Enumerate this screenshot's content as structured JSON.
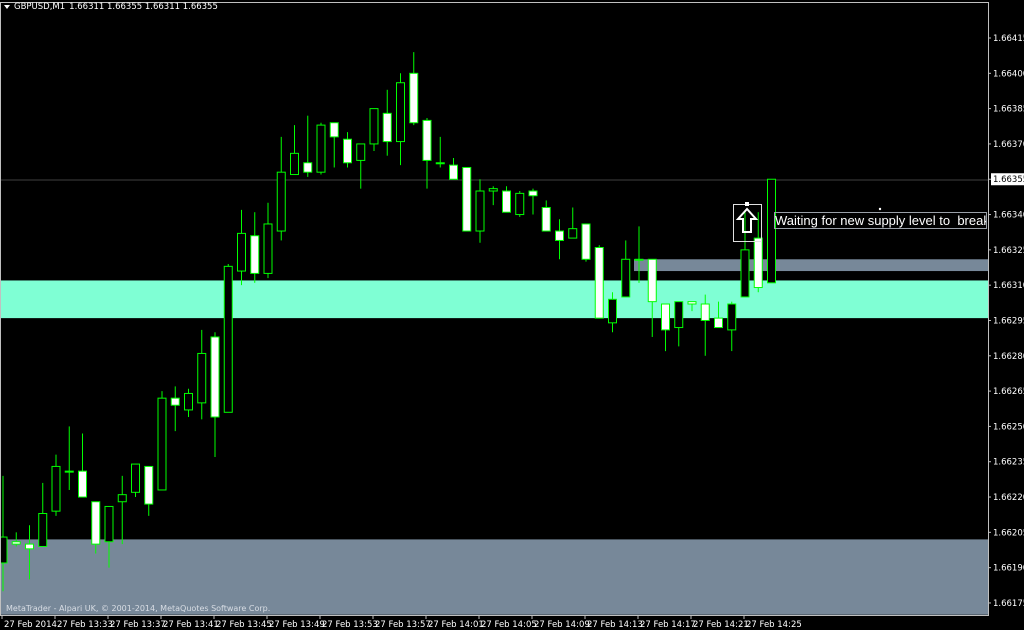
{
  "header": {
    "symbol": "GBPUSD,M1",
    "ohlc": "1.66311 1.66355 1.66311 1.66355"
  },
  "footer": "MetaTrader - Alpari UK, © 2001-2014, MetaQuotes Software Corp.",
  "annotation": {
    "text": "Waiting for new supply level to  break",
    "icon": "up-arrow-icon"
  },
  "colors": {
    "background": "#000000",
    "candle_outline": "#00ff00",
    "bull_body": "#000000",
    "bear_body": "#ffffff",
    "demand_zone": "#7fffd4",
    "supply_zone": "#778899",
    "bid_line": "#404040",
    "axis": "#c0c0c0"
  },
  "chart_data": {
    "type": "candlestick",
    "symbol": "GBPUSD",
    "timeframe": "M1",
    "ylim": [
      1.6617,
      1.66425
    ],
    "current_price": "1.66355",
    "price_ticks": [
      "1.66415",
      "1.66400",
      "1.66385",
      "1.66370",
      "1.66355",
      "1.66340",
      "1.66325",
      "1.66310",
      "1.66295",
      "1.66280",
      "1.66265",
      "1.66250",
      "1.66235",
      "1.66220",
      "1.66205",
      "1.66190",
      "1.66175"
    ],
    "time_ticks": [
      "27 Feb 2014",
      "27 Feb 13:33",
      "27 Feb 13:37",
      "27 Feb 13:41",
      "27 Feb 13:45",
      "27 Feb 13:49",
      "27 Feb 13:53",
      "27 Feb 13:57",
      "27 Feb 14:01",
      "27 Feb 14:05",
      "27 Feb 14:09",
      "27 Feb 14:13",
      "27 Feb 14:17",
      "27 Feb 14:21",
      "27 Feb 14:25"
    ],
    "candle_fields": [
      "time",
      "open",
      "high",
      "low",
      "close"
    ],
    "candles": [
      [
        "13:29",
        1.66192,
        1.66229,
        1.6618,
        1.66203
      ],
      [
        "13:30",
        1.66201,
        1.66205,
        1.66199,
        1.662
      ],
      [
        "13:31",
        1.662,
        1.66208,
        1.66185,
        1.66198
      ],
      [
        "13:32",
        1.66199,
        1.66226,
        1.66199,
        1.66213
      ],
      [
        "13:33",
        1.66214,
        1.66238,
        1.66212,
        1.66233
      ],
      [
        "13:34",
        1.66231,
        1.6625,
        1.66223,
        1.66231
      ],
      [
        "13:35",
        1.66231,
        1.66247,
        1.6622,
        1.6622
      ],
      [
        "13:36",
        1.66218,
        1.66218,
        1.66196,
        1.662
      ],
      [
        "13:37",
        1.66201,
        1.66216,
        1.6619,
        1.66216
      ],
      [
        "13:38",
        1.66218,
        1.66229,
        1.662,
        1.66221
      ],
      [
        "13:39",
        1.66222,
        1.66234,
        1.6622,
        1.66234
      ],
      [
        "13:40",
        1.66233,
        1.66233,
        1.66212,
        1.66217
      ],
      [
        "13:41",
        1.66223,
        1.66265,
        1.66223,
        1.66262
      ],
      [
        "13:42",
        1.66262,
        1.66267,
        1.66248,
        1.66259
      ],
      [
        "13:43",
        1.66257,
        1.66266,
        1.66254,
        1.66264
      ],
      [
        "13:44",
        1.6626,
        1.66291,
        1.66253,
        1.66281
      ],
      [
        "13:45",
        1.66288,
        1.6629,
        1.66237,
        1.66254
      ],
      [
        "13:46",
        1.66256,
        1.66319,
        1.66256,
        1.66318
      ],
      [
        "13:47",
        1.66316,
        1.66342,
        1.6631,
        1.66332
      ],
      [
        "13:48",
        1.66331,
        1.66341,
        1.66311,
        1.66315
      ],
      [
        "13:49",
        1.66315,
        1.66345,
        1.66313,
        1.66336
      ],
      [
        "13:50",
        1.66333,
        1.66373,
        1.66329,
        1.66358
      ],
      [
        "13:51",
        1.66357,
        1.66378,
        1.66357,
        1.66366
      ],
      [
        "13:52",
        1.66362,
        1.66382,
        1.66356,
        1.66358
      ],
      [
        "13:53",
        1.66358,
        1.66379,
        1.66357,
        1.66378
      ],
      [
        "13:54",
        1.66379,
        1.66379,
        1.6636,
        1.66373
      ],
      [
        "13:55",
        1.66372,
        1.66375,
        1.6636,
        1.66362
      ],
      [
        "13:56",
        1.66363,
        1.6637,
        1.66351,
        1.6637
      ],
      [
        "13:57",
        1.6637,
        1.66385,
        1.66367,
        1.66385
      ],
      [
        "13:58",
        1.66383,
        1.66393,
        1.66365,
        1.66371
      ],
      [
        "13:59",
        1.66371,
        1.664,
        1.66361,
        1.66396
      ],
      [
        "14:00",
        1.664,
        1.66409,
        1.66378,
        1.66379
      ],
      [
        "14:01",
        1.6638,
        1.66381,
        1.66351,
        1.66363
      ],
      [
        "14:02",
        1.66362,
        1.66373,
        1.6636,
        1.66362
      ],
      [
        "14:03",
        1.66361,
        1.66364,
        1.66355,
        1.66355
      ],
      [
        "14:04",
        1.6636,
        1.6636,
        1.66333,
        1.66333
      ],
      [
        "14:05",
        1.66333,
        1.66355,
        1.66328,
        1.6635
      ],
      [
        "14:06",
        1.6635,
        1.66352,
        1.66344,
        1.66351
      ],
      [
        "14:07",
        1.6635,
        1.66352,
        1.66341,
        1.66341
      ],
      [
        "14:08",
        1.6634,
        1.6635,
        1.66339,
        1.66349
      ],
      [
        "14:09",
        1.6635,
        1.66351,
        1.6634,
        1.66348
      ],
      [
        "14:10",
        1.66343,
        1.66346,
        1.66333,
        1.66333
      ],
      [
        "14:11",
        1.66333,
        1.66338,
        1.66321,
        1.66329
      ],
      [
        "14:12",
        1.6633,
        1.66343,
        1.6633,
        1.66334
      ],
      [
        "14:13",
        1.66336,
        1.66336,
        1.6632,
        1.66321
      ],
      [
        "14:14",
        1.66326,
        1.66327,
        1.66296,
        1.66296
      ],
      [
        "14:15",
        1.66294,
        1.66307,
        1.6629,
        1.66304
      ],
      [
        "14:16",
        1.66305,
        1.66329,
        1.66305,
        1.66321
      ],
      [
        "14:17",
        1.66321,
        1.66335,
        1.66311,
        1.66321
      ],
      [
        "14:18",
        1.66321,
        1.66321,
        1.66288,
        1.66303
      ],
      [
        "14:19",
        1.66302,
        1.66302,
        1.66282,
        1.66291
      ],
      [
        "14:20",
        1.66292,
        1.66303,
        1.66284,
        1.66303
      ],
      [
        "14:21",
        1.66303,
        1.66303,
        1.66299,
        1.66302
      ],
      [
        "14:22",
        1.66302,
        1.66306,
        1.6628,
        1.66295
      ],
      [
        "14:23",
        1.66296,
        1.66303,
        1.66292,
        1.66292
      ],
      [
        "14:24",
        1.66291,
        1.66303,
        1.66282,
        1.66302
      ],
      [
        "14:25",
        1.66305,
        1.66341,
        1.66305,
        1.66325
      ],
      [
        "14:26",
        1.6633,
        1.66341,
        1.66307,
        1.66309
      ],
      [
        "14:27",
        1.66311,
        1.66355,
        1.66311,
        1.66355
      ]
    ],
    "zones": [
      {
        "kind": "demand",
        "from_time": "13:29",
        "top": 1.66312,
        "bottom": 1.66296
      },
      {
        "kind": "supply",
        "from_time": "14:17",
        "top": 1.66321,
        "bottom": 1.66316
      },
      {
        "kind": "lower",
        "from_time": "13:29",
        "top": 1.66202,
        "bottom": 1.6617
      }
    ],
    "arrow_time": "14:25"
  }
}
